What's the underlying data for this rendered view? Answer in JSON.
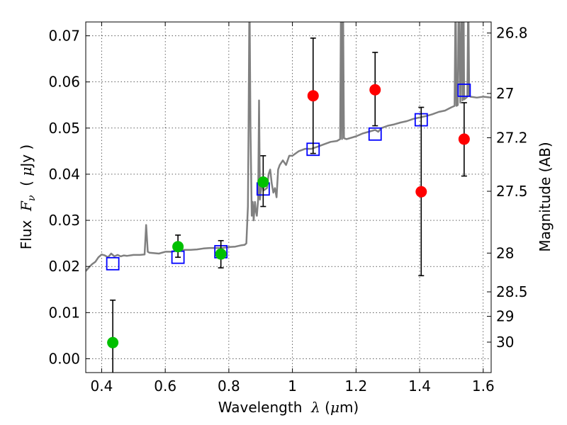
{
  "chart_data": {
    "type": "scatter",
    "xlabel_parts": [
      "Wavelength  ",
      "λ",
      " (",
      "μ",
      "m)"
    ],
    "ylabel_parts": [
      "Flux  ",
      "F",
      "ν",
      "  ( ",
      "μ",
      "Jy )"
    ],
    "y2label": "Magnitude (AB)",
    "xlim": [
      0.35,
      1.625
    ],
    "ylim": [
      -0.003,
      0.073
    ],
    "grid": true,
    "x_ticks": [
      0.4,
      0.6,
      0.8,
      1.0,
      1.2,
      1.4,
      1.6
    ],
    "x_tick_labels": [
      "0.4",
      "0.6",
      "0.8",
      "1",
      "1.2",
      "1.4",
      "1.6"
    ],
    "y_ticks": [
      0.0,
      0.01,
      0.02,
      0.03,
      0.04,
      0.05,
      0.06,
      0.07
    ],
    "y_tick_labels": [
      "0.00",
      "0.01",
      "0.02",
      "0.03",
      "0.04",
      "0.05",
      "0.06",
      "0.07"
    ],
    "y2_ticks": [
      {
        "label": "26.8",
        "flux": 0.0706
      },
      {
        "label": "27",
        "flux": 0.0575
      },
      {
        "label": "27.2",
        "flux": 0.0479
      },
      {
        "label": "27.5",
        "flux": 0.0363
      },
      {
        "label": "28",
        "flux": 0.0229
      },
      {
        "label": "28.5",
        "flux": 0.0145
      },
      {
        "label": "29",
        "flux": 0.0092
      },
      {
        "label": "30",
        "flux": 0.0036
      }
    ],
    "series": [
      {
        "kind": "spectrum",
        "color": "#808080",
        "x": [
          0.35,
          0.36,
          0.37,
          0.38,
          0.39,
          0.4,
          0.41,
          0.42,
          0.43,
          0.44,
          0.45,
          0.46,
          0.47,
          0.48,
          0.5,
          0.52,
          0.535,
          0.54,
          0.545,
          0.55,
          0.58,
          0.6,
          0.62,
          0.64,
          0.66,
          0.68,
          0.7,
          0.72,
          0.74,
          0.76,
          0.78,
          0.8,
          0.82,
          0.84,
          0.85,
          0.855,
          0.86,
          0.862,
          0.865,
          0.868,
          0.872,
          0.875,
          0.878,
          0.882,
          0.885,
          0.888,
          0.892,
          0.895,
          0.898,
          0.9,
          0.905,
          0.91,
          0.92,
          0.925,
          0.93,
          0.935,
          0.94,
          0.945,
          0.95,
          0.955,
          0.96,
          0.97,
          0.98,
          0.99,
          1.0,
          1.02,
          1.04,
          1.06,
          1.08,
          1.1,
          1.12,
          1.14,
          1.15,
          1.153,
          1.156,
          1.159,
          1.162,
          1.17,
          1.2,
          1.22,
          1.24,
          1.26,
          1.27,
          1.28,
          1.3,
          1.32,
          1.34,
          1.36,
          1.38,
          1.4,
          1.42,
          1.44,
          1.46,
          1.48,
          1.5,
          1.51,
          1.513,
          1.516,
          1.52,
          1.523,
          1.528,
          1.532,
          1.535,
          1.538,
          1.54,
          1.545,
          1.55,
          1.553,
          1.556,
          1.56,
          1.58,
          1.6,
          1.625
        ],
        "y": [
          0.019,
          0.0198,
          0.0205,
          0.021,
          0.022,
          0.0226,
          0.0224,
          0.022,
          0.0228,
          0.0222,
          0.0225,
          0.0222,
          0.0224,
          0.0223,
          0.0225,
          0.0225,
          0.0226,
          0.029,
          0.0232,
          0.023,
          0.0228,
          0.0232,
          0.0232,
          0.0235,
          0.0236,
          0.0236,
          0.0237,
          0.0239,
          0.024,
          0.024,
          0.024,
          0.0242,
          0.0243,
          0.0246,
          0.0247,
          0.025,
          0.033,
          0.05,
          0.08,
          0.05,
          0.031,
          0.034,
          0.03,
          0.034,
          0.032,
          0.031,
          0.0345,
          0.056,
          0.0345,
          0.036,
          0.038,
          0.0365,
          0.037,
          0.04,
          0.041,
          0.038,
          0.036,
          0.037,
          0.035,
          0.041,
          0.042,
          0.043,
          0.042,
          0.044,
          0.044,
          0.045,
          0.0455,
          0.0455,
          0.046,
          0.0465,
          0.047,
          0.0472,
          0.0476,
          0.08,
          0.0476,
          0.08,
          0.0478,
          0.0476,
          0.0482,
          0.0488,
          0.0492,
          0.0496,
          0.0492,
          0.05,
          0.0505,
          0.0508,
          0.0512,
          0.0515,
          0.052,
          0.0523,
          0.0526,
          0.053,
          0.0535,
          0.0538,
          0.0545,
          0.0548,
          0.08,
          0.0548,
          0.055,
          0.08,
          0.0555,
          0.08,
          0.056,
          0.08,
          0.0562,
          0.0565,
          0.0568,
          0.08,
          0.057,
          0.0568,
          0.0566,
          0.0568,
          0.0566
        ]
      },
      {
        "kind": "model-squares",
        "color": "#0000ff",
        "x": [
          0.435,
          0.64,
          0.775,
          0.908,
          1.065,
          1.26,
          1.405,
          1.54
        ],
        "y": [
          0.0206,
          0.022,
          0.0232,
          0.0368,
          0.0454,
          0.0487,
          0.0518,
          0.0582
        ]
      },
      {
        "kind": "detections",
        "color": "#00c000",
        "x": [
          0.435,
          0.64,
          0.775,
          0.908
        ],
        "y": [
          0.0035,
          0.0243,
          0.0227,
          0.0383
        ],
        "yerr_low": [
          0.0165,
          0.0023,
          0.003,
          0.0053
        ],
        "yerr_high": [
          0.0092,
          0.0025,
          0.0029,
          0.0057
        ]
      },
      {
        "kind": "non-detections",
        "color": "#ff0000",
        "x": [
          1.065,
          1.26,
          1.405,
          1.54
        ],
        "y": [
          0.057,
          0.0583,
          0.0362,
          0.0476
        ],
        "yerr_low": [
          0.0125,
          0.0078,
          0.0182,
          0.008
        ],
        "yerr_high": [
          0.0125,
          0.0081,
          0.0183,
          0.0079
        ]
      }
    ]
  }
}
